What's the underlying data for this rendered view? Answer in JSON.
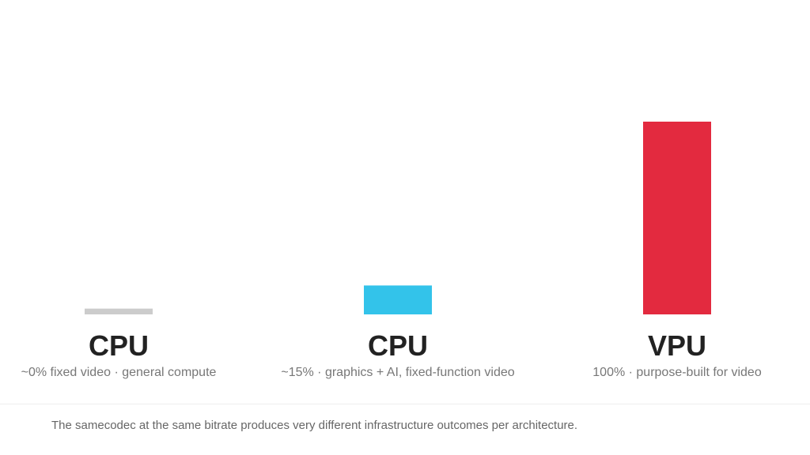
{
  "chart_data": {
    "type": "bar",
    "categories": [
      "CPU",
      "CPU",
      "VPU"
    ],
    "subtitles": [
      "~0% fixed video · general compute",
      "~15% · graphics + AI, fixed-function video",
      "100% · purpose-built for video"
    ],
    "values": [
      3,
      15,
      100
    ],
    "colors": [
      "#cccccc",
      "#33c3ea",
      "#e32a3f"
    ],
    "ylim": [
      0,
      100
    ],
    "grid": false,
    "legend": "none"
  },
  "footnote": "The samecodec at the same bitrate produces very different infrastructure outcomes per architecture."
}
